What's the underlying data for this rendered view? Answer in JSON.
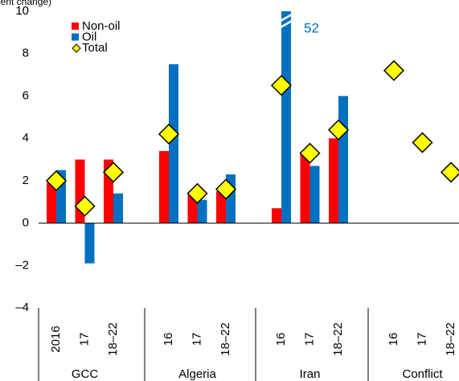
{
  "chart_data": {
    "type": "bar",
    "subtitle": "(Percent change)",
    "categories": [
      "2016",
      "17",
      "18–22",
      "16",
      "17",
      "18–22",
      "16",
      "17",
      "18–22",
      "16",
      "17",
      "18–22"
    ],
    "groups": [
      "GCC",
      "Algeria",
      "Iran",
      "Conflict"
    ],
    "series": [
      {
        "name": "Non-oil",
        "color": "#ff0000",
        "values": [
          1.9,
          3.0,
          3.0,
          3.4,
          1.4,
          1.5,
          0.7,
          3.3,
          4.0,
          null,
          null,
          null
        ]
      },
      {
        "name": "Oil",
        "color": "#0070c0",
        "values": [
          2.5,
          -1.9,
          1.4,
          7.5,
          1.1,
          2.3,
          52,
          2.7,
          6.0,
          null,
          null,
          null
        ],
        "value_labels": [
          null,
          null,
          null,
          null,
          null,
          null,
          "52",
          null,
          null,
          null,
          null,
          null
        ]
      },
      {
        "name": "Total",
        "color": "#ffff00",
        "type": "marker",
        "values": [
          2.0,
          0.8,
          2.4,
          4.2,
          1.4,
          1.6,
          6.5,
          3.3,
          4.4,
          7.2,
          3.8,
          2.4
        ]
      }
    ],
    "ylim": [
      -4,
      10
    ],
    "yticks": [
      {
        "value": -4,
        "label": "–4"
      },
      {
        "value": -2,
        "label": "–2"
      },
      0,
      2,
      4,
      6,
      8,
      10
    ]
  }
}
